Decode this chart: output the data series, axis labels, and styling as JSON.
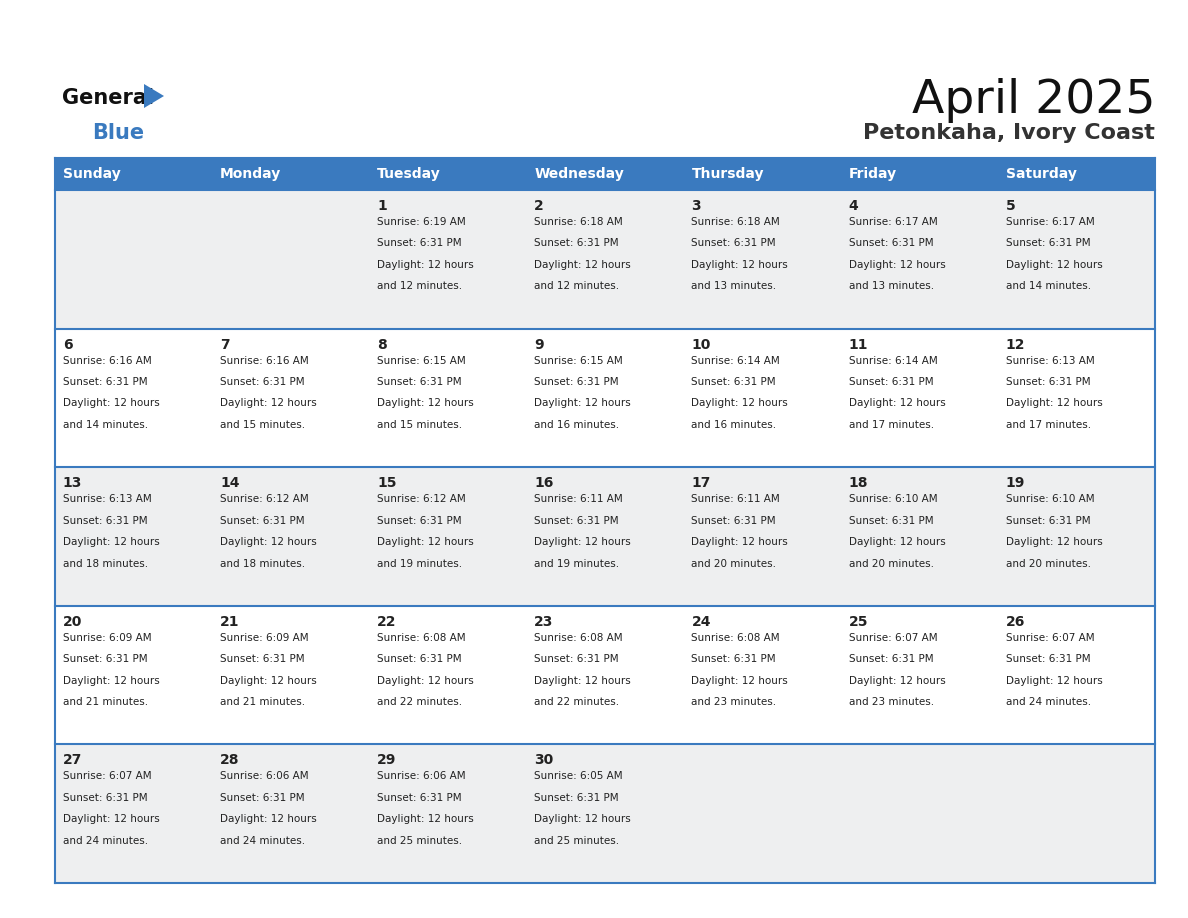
{
  "title": "April 2025",
  "subtitle": "Petonkaha, Ivory Coast",
  "header_color": "#3a7abf",
  "header_text_color": "#ffffff",
  "row_bg_even": "#eeeff0",
  "row_bg_odd": "#ffffff",
  "grid_line_color": "#3a7abf",
  "text_color": "#222222",
  "title_color": "#111111",
  "subtitle_color": "#333333",
  "logo_general_color": "#111111",
  "logo_blue_color": "#3a7abf",
  "logo_triangle_color": "#3a7abf",
  "day_names": [
    "Sunday",
    "Monday",
    "Tuesday",
    "Wednesday",
    "Thursday",
    "Friday",
    "Saturday"
  ],
  "days": [
    {
      "day": 1,
      "row": 0,
      "col": 2,
      "sunrise": "6:19 AM",
      "sunset": "6:31 PM",
      "daylight_hours": 12,
      "daylight_minutes": 12
    },
    {
      "day": 2,
      "row": 0,
      "col": 3,
      "sunrise": "6:18 AM",
      "sunset": "6:31 PM",
      "daylight_hours": 12,
      "daylight_minutes": 12
    },
    {
      "day": 3,
      "row": 0,
      "col": 4,
      "sunrise": "6:18 AM",
      "sunset": "6:31 PM",
      "daylight_hours": 12,
      "daylight_minutes": 13
    },
    {
      "day": 4,
      "row": 0,
      "col": 5,
      "sunrise": "6:17 AM",
      "sunset": "6:31 PM",
      "daylight_hours": 12,
      "daylight_minutes": 13
    },
    {
      "day": 5,
      "row": 0,
      "col": 6,
      "sunrise": "6:17 AM",
      "sunset": "6:31 PM",
      "daylight_hours": 12,
      "daylight_minutes": 14
    },
    {
      "day": 6,
      "row": 1,
      "col": 0,
      "sunrise": "6:16 AM",
      "sunset": "6:31 PM",
      "daylight_hours": 12,
      "daylight_minutes": 14
    },
    {
      "day": 7,
      "row": 1,
      "col": 1,
      "sunrise": "6:16 AM",
      "sunset": "6:31 PM",
      "daylight_hours": 12,
      "daylight_minutes": 15
    },
    {
      "day": 8,
      "row": 1,
      "col": 2,
      "sunrise": "6:15 AM",
      "sunset": "6:31 PM",
      "daylight_hours": 12,
      "daylight_minutes": 15
    },
    {
      "day": 9,
      "row": 1,
      "col": 3,
      "sunrise": "6:15 AM",
      "sunset": "6:31 PM",
      "daylight_hours": 12,
      "daylight_minutes": 16
    },
    {
      "day": 10,
      "row": 1,
      "col": 4,
      "sunrise": "6:14 AM",
      "sunset": "6:31 PM",
      "daylight_hours": 12,
      "daylight_minutes": 16
    },
    {
      "day": 11,
      "row": 1,
      "col": 5,
      "sunrise": "6:14 AM",
      "sunset": "6:31 PM",
      "daylight_hours": 12,
      "daylight_minutes": 17
    },
    {
      "day": 12,
      "row": 1,
      "col": 6,
      "sunrise": "6:13 AM",
      "sunset": "6:31 PM",
      "daylight_hours": 12,
      "daylight_minutes": 17
    },
    {
      "day": 13,
      "row": 2,
      "col": 0,
      "sunrise": "6:13 AM",
      "sunset": "6:31 PM",
      "daylight_hours": 12,
      "daylight_minutes": 18
    },
    {
      "day": 14,
      "row": 2,
      "col": 1,
      "sunrise": "6:12 AM",
      "sunset": "6:31 PM",
      "daylight_hours": 12,
      "daylight_minutes": 18
    },
    {
      "day": 15,
      "row": 2,
      "col": 2,
      "sunrise": "6:12 AM",
      "sunset": "6:31 PM",
      "daylight_hours": 12,
      "daylight_minutes": 19
    },
    {
      "day": 16,
      "row": 2,
      "col": 3,
      "sunrise": "6:11 AM",
      "sunset": "6:31 PM",
      "daylight_hours": 12,
      "daylight_minutes": 19
    },
    {
      "day": 17,
      "row": 2,
      "col": 4,
      "sunrise": "6:11 AM",
      "sunset": "6:31 PM",
      "daylight_hours": 12,
      "daylight_minutes": 20
    },
    {
      "day": 18,
      "row": 2,
      "col": 5,
      "sunrise": "6:10 AM",
      "sunset": "6:31 PM",
      "daylight_hours": 12,
      "daylight_minutes": 20
    },
    {
      "day": 19,
      "row": 2,
      "col": 6,
      "sunrise": "6:10 AM",
      "sunset": "6:31 PM",
      "daylight_hours": 12,
      "daylight_minutes": 20
    },
    {
      "day": 20,
      "row": 3,
      "col": 0,
      "sunrise": "6:09 AM",
      "sunset": "6:31 PM",
      "daylight_hours": 12,
      "daylight_minutes": 21
    },
    {
      "day": 21,
      "row": 3,
      "col": 1,
      "sunrise": "6:09 AM",
      "sunset": "6:31 PM",
      "daylight_hours": 12,
      "daylight_minutes": 21
    },
    {
      "day": 22,
      "row": 3,
      "col": 2,
      "sunrise": "6:08 AM",
      "sunset": "6:31 PM",
      "daylight_hours": 12,
      "daylight_minutes": 22
    },
    {
      "day": 23,
      "row": 3,
      "col": 3,
      "sunrise": "6:08 AM",
      "sunset": "6:31 PM",
      "daylight_hours": 12,
      "daylight_minutes": 22
    },
    {
      "day": 24,
      "row": 3,
      "col": 4,
      "sunrise": "6:08 AM",
      "sunset": "6:31 PM",
      "daylight_hours": 12,
      "daylight_minutes": 23
    },
    {
      "day": 25,
      "row": 3,
      "col": 5,
      "sunrise": "6:07 AM",
      "sunset": "6:31 PM",
      "daylight_hours": 12,
      "daylight_minutes": 23
    },
    {
      "day": 26,
      "row": 3,
      "col": 6,
      "sunrise": "6:07 AM",
      "sunset": "6:31 PM",
      "daylight_hours": 12,
      "daylight_minutes": 24
    },
    {
      "day": 27,
      "row": 4,
      "col": 0,
      "sunrise": "6:07 AM",
      "sunset": "6:31 PM",
      "daylight_hours": 12,
      "daylight_minutes": 24
    },
    {
      "day": 28,
      "row": 4,
      "col": 1,
      "sunrise": "6:06 AM",
      "sunset": "6:31 PM",
      "daylight_hours": 12,
      "daylight_minutes": 24
    },
    {
      "day": 29,
      "row": 4,
      "col": 2,
      "sunrise": "6:06 AM",
      "sunset": "6:31 PM",
      "daylight_hours": 12,
      "daylight_minutes": 25
    },
    {
      "day": 30,
      "row": 4,
      "col": 3,
      "sunrise": "6:05 AM",
      "sunset": "6:31 PM",
      "daylight_hours": 12,
      "daylight_minutes": 25
    }
  ]
}
